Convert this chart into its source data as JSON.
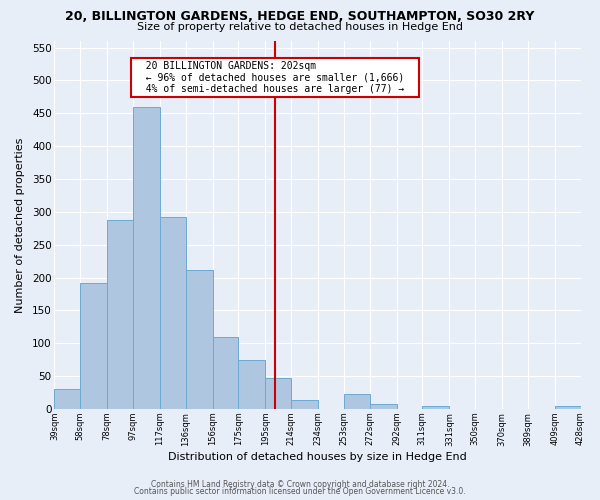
{
  "title": "20, BILLINGTON GARDENS, HEDGE END, SOUTHAMPTON, SO30 2RY",
  "subtitle": "Size of property relative to detached houses in Hedge End",
  "xlabel": "Distribution of detached houses by size in Hedge End",
  "ylabel": "Number of detached properties",
  "bar_color": "#aec6e0",
  "bar_edge_color": "#6aaad4",
  "background_color": "#e8eef8",
  "grid_color": "#ffffff",
  "vline_x": 202,
  "vline_color": "#cc0000",
  "annotation_title": "20 BILLINGTON GARDENS: 202sqm",
  "annotation_line1": "← 96% of detached houses are smaller (1,666)",
  "annotation_line2": "4% of semi-detached houses are larger (77) →",
  "annotation_box_color": "#cc0000",
  "footer1": "Contains HM Land Registry data © Crown copyright and database right 2024.",
  "footer2": "Contains public sector information licensed under the Open Government Licence v3.0.",
  "bin_edges": [
    39,
    58,
    78,
    97,
    117,
    136,
    156,
    175,
    195,
    214,
    234,
    253,
    272,
    292,
    311,
    331,
    350,
    370,
    389,
    409,
    428
  ],
  "bin_counts": [
    30,
    192,
    288,
    460,
    292,
    212,
    110,
    75,
    47,
    14,
    0,
    22,
    8,
    0,
    5,
    0,
    0,
    0,
    0,
    5
  ],
  "ylim": [
    0,
    560
  ],
  "yticks": [
    0,
    50,
    100,
    150,
    200,
    250,
    300,
    350,
    400,
    450,
    500,
    550
  ]
}
